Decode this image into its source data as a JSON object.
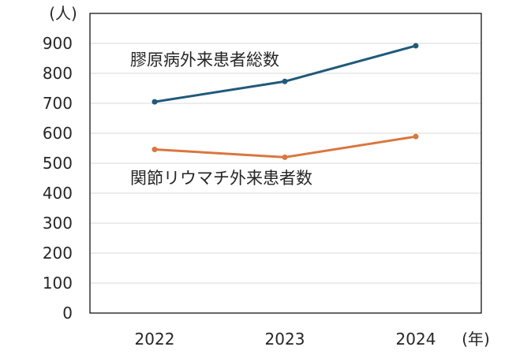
{
  "chart_data": {
    "type": "line",
    "x": [
      "2022",
      "2023",
      "2024"
    ],
    "xlabel": "(年)",
    "ylabel": "(人)",
    "ylim": [
      0,
      900
    ],
    "yticks": [
      0,
      100,
      200,
      300,
      400,
      500,
      600,
      700,
      800,
      900
    ],
    "grid": true,
    "series": [
      {
        "name": "膠原病外来患者総数",
        "values": [
          705,
          773,
          892
        ],
        "color": "#1f5a7a"
      },
      {
        "name": "関節リウマチ外来患者数",
        "values": [
          546,
          520,
          589
        ],
        "color": "#d9773f"
      }
    ]
  }
}
